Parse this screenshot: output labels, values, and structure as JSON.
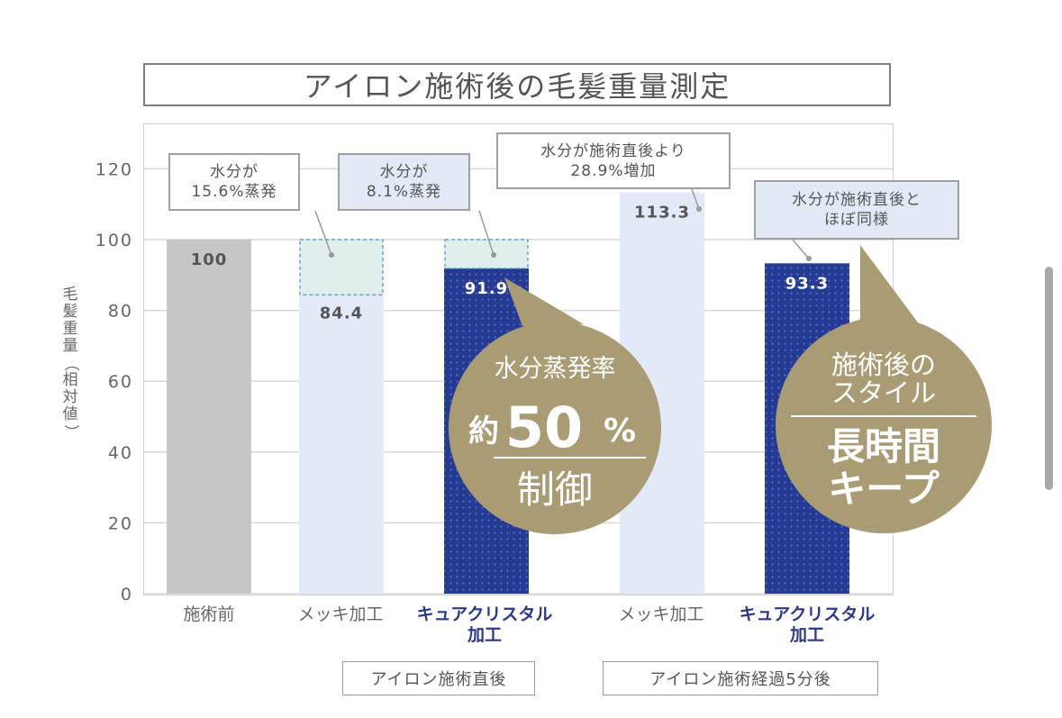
{
  "title": "アイロン施術後の毛髪重量測定",
  "y_axis_label": "毛髪重量（相対値）",
  "y_ticks": [
    "0",
    "20",
    "40",
    "60",
    "80",
    "100",
    "120"
  ],
  "categories": [
    {
      "label": "施術前",
      "style": "gray"
    },
    {
      "label": "メッキ加工",
      "style": "gray"
    },
    {
      "label": "キュアクリスタル加工",
      "line1": "キュアクリスタル",
      "line2": "加工",
      "style": "blue"
    },
    {
      "label": "メッキ加工",
      "style": "gray"
    },
    {
      "label": "キュアクリスタル加工",
      "line1": "キュアクリスタル",
      "line2": "加工",
      "style": "blue"
    }
  ],
  "groups": [
    "アイロン施術直後",
    "アイロン施術経過5分後"
  ],
  "callouts": {
    "c1": {
      "line1": "水分が",
      "line2": "15.6%蒸発"
    },
    "c2": {
      "line1": "水分が",
      "line2": "8.1%蒸発"
    },
    "c3": {
      "line1": "水分が施術直後より",
      "line2": "28.9%増加"
    },
    "c4": {
      "line1": "水分が施術直後と",
      "line2": "ほぼ同様"
    }
  },
  "badge1": {
    "top": "水分蒸発率",
    "prefix": "約",
    "big": "50",
    "unit": "%",
    "bottom": "制御"
  },
  "badge2": {
    "line1": "施術後の",
    "line2": "スタイル",
    "line3": "長時間",
    "line4": "キープ"
  },
  "colors": {
    "gray_bar": "#c6c6c6",
    "light_bar": "#e1eaf6",
    "dark_bar": "#243a93",
    "evap_fill": "#e1efec",
    "evap_border": "#5fa7d4",
    "badge": "#a99b73"
  },
  "chart_data": {
    "type": "bar",
    "categories": [
      "施術前",
      "メッキ加工",
      "キュアクリスタル加工",
      "メッキ加工",
      "キュアクリスタル加工"
    ],
    "values": [
      100,
      84.4,
      91.9,
      113.3,
      93.3
    ],
    "value_labels": [
      "100",
      "84.4",
      "91.9",
      "113.3",
      "93.3"
    ],
    "evaporated_to": [
      null,
      100,
      100,
      null,
      null
    ],
    "ylim": [
      0,
      120
    ],
    "grid": true,
    "ylabel": "毛髪重量（相対値）",
    "title": "アイロン施術後の毛髪重量測定"
  }
}
